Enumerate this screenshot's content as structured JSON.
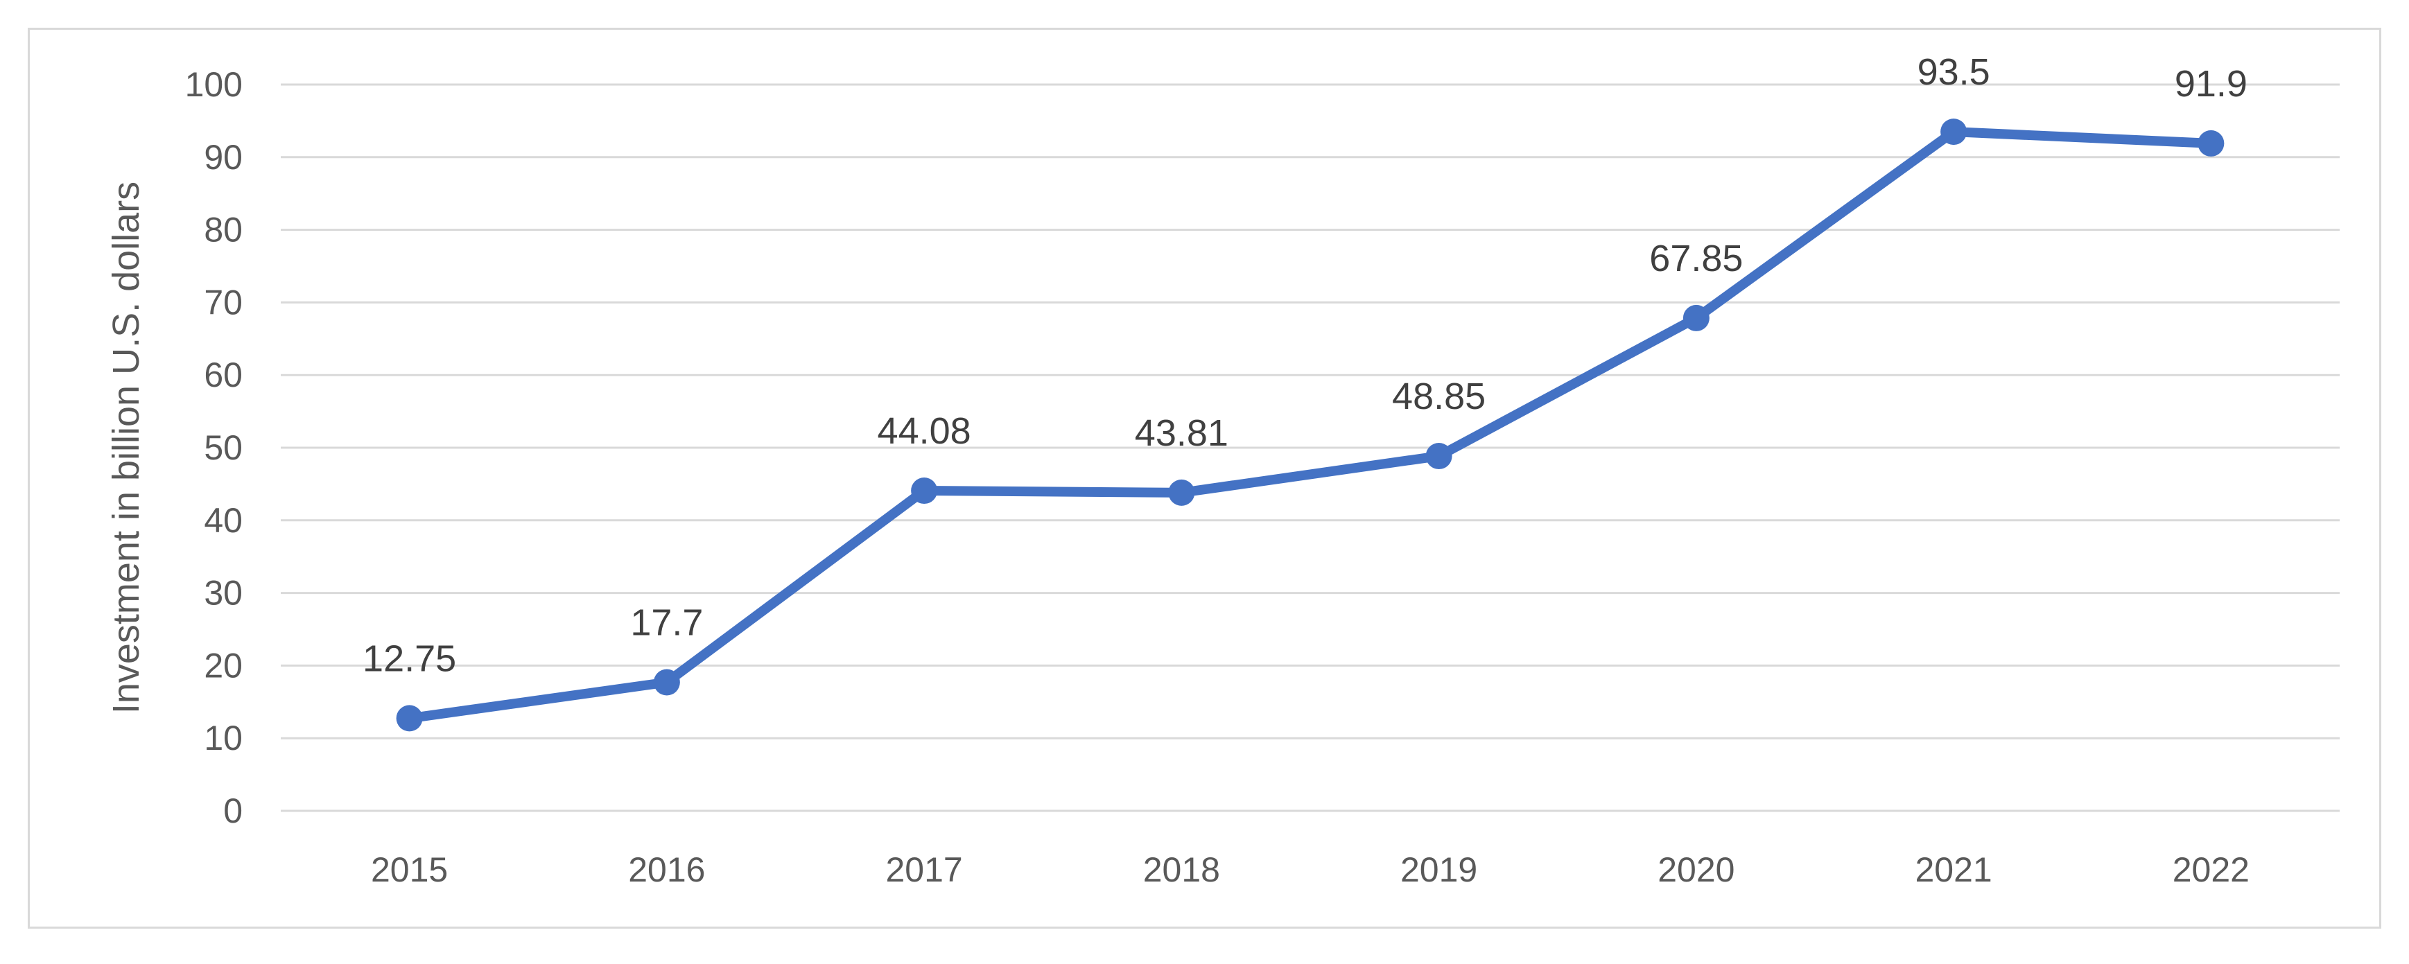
{
  "chart_data": {
    "type": "line",
    "title": "",
    "xlabel": "",
    "ylabel": "Investment in billion U.S. dollars",
    "ylim": [
      0,
      100
    ],
    "yticks": [
      "0",
      "10",
      "20",
      "30",
      "40",
      "50",
      "60",
      "70",
      "80",
      "90",
      "100"
    ],
    "categories": [
      "2015",
      "2016",
      "2017",
      "2018",
      "2019",
      "2020",
      "2021",
      "2022"
    ],
    "series": [
      {
        "values": [
          12.75,
          17.7,
          44.08,
          43.81,
          48.85,
          67.85,
          93.5,
          91.9
        ],
        "labels": [
          "12.75",
          "17.7",
          "44.08",
          "43.81",
          "48.85",
          "67.85",
          "93.5",
          "91.9"
        ],
        "color": "#4472c4"
      }
    ],
    "grid": true,
    "legend": "none"
  }
}
